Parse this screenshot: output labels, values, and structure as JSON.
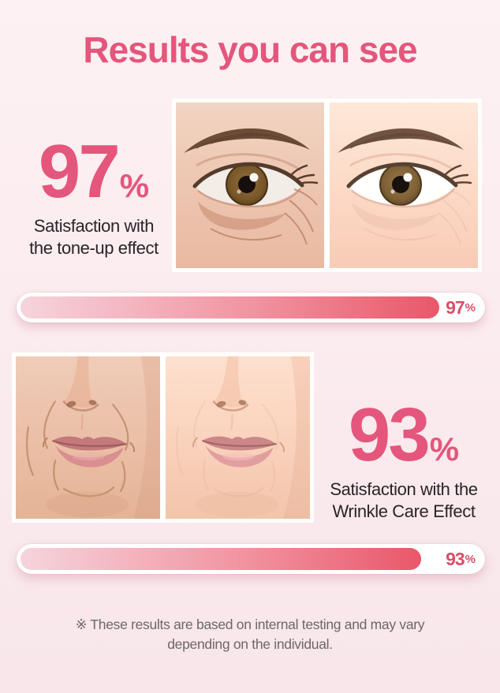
{
  "page": {
    "title": "Results you can see"
  },
  "colors": {
    "accent_pink": "#e4567c",
    "bar_gradient_start": "#f6d4dc",
    "bar_gradient_end": "#e9576a",
    "bar_label_color": "#d94f68",
    "background": "#fbecef",
    "text_dark": "#2a2427",
    "text_gray": "#6d6769"
  },
  "sections": [
    {
      "id": "tone-up",
      "percent": "97",
      "percent_symbol": "%",
      "caption_line1": "Satisfaction with",
      "caption_line2": "the tone-up effect",
      "bar": {
        "value": 97,
        "label_number": "97",
        "label_symbol": "%"
      }
    },
    {
      "id": "wrinkle-care",
      "percent": "93",
      "percent_symbol": "%",
      "caption_line1": "Satisfaction with the",
      "caption_line2": "Wrinkle Care Effect",
      "bar": {
        "value": 93,
        "label_number": "93",
        "label_symbol": "%"
      }
    }
  ],
  "disclaimer": {
    "line1": "※ These results are based on internal testing and may vary",
    "line2": "depending on the individual."
  }
}
